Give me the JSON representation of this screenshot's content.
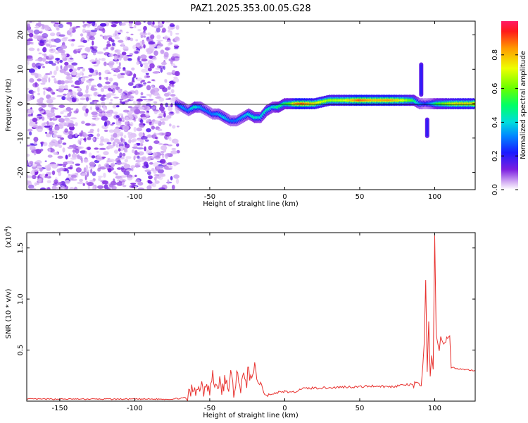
{
  "title": "PAZ1.2025.353.00.05.G28",
  "chart_data": [
    {
      "type": "heatmap",
      "title": "PAZ1.2025.353.00.05.G28",
      "xlabel": "Height of straight line (km)",
      "ylabel": "Frequency (Hz)",
      "xlim": [
        -172,
        127
      ],
      "ylim": [
        -25,
        24
      ],
      "xticks": [
        -150,
        -100,
        -50,
        0,
        50,
        100
      ],
      "yticks": [
        20,
        10,
        0,
        -10,
        -20
      ],
      "colorbar": {
        "label": "Normalized spectral amplitude",
        "range": [
          0,
          1
        ],
        "ticks": [
          0,
          0.2,
          0.4,
          0.6,
          0.8
        ]
      },
      "noise_region_x": [
        -172,
        -71
      ],
      "ridge": {
        "x": [
          -72,
          -68,
          -64,
          -60,
          -56,
          -52,
          -48,
          -44,
          -40,
          -36,
          -32,
          -28,
          -24,
          -20,
          -16,
          -12,
          -8,
          -4,
          0,
          4,
          8,
          12,
          20,
          30,
          40,
          50,
          60,
          70,
          80,
          86,
          90,
          94,
          98,
          102,
          108,
          115,
          127
        ],
        "freq": [
          0,
          -1,
          -2,
          -1,
          -1,
          -2,
          -3,
          -3,
          -4,
          -5,
          -5,
          -4,
          -3,
          -4,
          -4,
          -2,
          -1,
          -1,
          0,
          0,
          0,
          0,
          0,
          1,
          1,
          1,
          1,
          1,
          1,
          1,
          0,
          0,
          0,
          0,
          0,
          0,
          0
        ],
        "amplitude": [
          0.2,
          0.35,
          0.3,
          0.45,
          0.35,
          0.3,
          0.3,
          0.35,
          0.4,
          0.3,
          0.3,
          0.35,
          0.4,
          0.45,
          0.4,
          0.45,
          0.4,
          0.5,
          0.5,
          0.6,
          0.85,
          0.9,
          0.75,
          0.65,
          0.7,
          0.9,
          0.8,
          0.85,
          0.7,
          0.55,
          0.35,
          0.25,
          0.35,
          0.55,
          0.65,
          0.75,
          0.75
        ]
      },
      "spikes": [
        {
          "x": 91,
          "freq_range": [
            2,
            12
          ],
          "amplitude": 0.15
        },
        {
          "x": 95,
          "freq_range": [
            -10,
            -4
          ],
          "amplitude": 0.15
        }
      ]
    },
    {
      "type": "line",
      "title": "",
      "xlabel": "Height of straight line (km)",
      "ylabel": "SNR (10 * v/v)",
      "y_multiplier": "(x10",
      "y_multiplier_exp": "4",
      "y_multiplier_close": ")",
      "xlim": [
        -172,
        127
      ],
      "ylim": [
        0,
        1.65
      ],
      "xticks": [
        -150,
        -100,
        -50,
        0,
        50,
        100
      ],
      "yticks": [
        0.5,
        1.0,
        1.5
      ],
      "series": [
        {
          "name": "SNR",
          "color": "#e8312e",
          "x": [
            -172,
            -150,
            -120,
            -90,
            -75,
            -68,
            -64,
            -62,
            -60,
            -58,
            -56,
            -54,
            -52,
            -50,
            -48,
            -46,
            -44,
            -42,
            -40,
            -38,
            -36,
            -34,
            -32,
            -30,
            -28,
            -26,
            -24,
            -22,
            -20,
            -18,
            -16,
            -14,
            -12,
            -10,
            -8,
            -6,
            -4,
            -2,
            0,
            5,
            10,
            20,
            30,
            40,
            50,
            60,
            70,
            80,
            86,
            88,
            90,
            91,
            92,
            93,
            94,
            95,
            96,
            97,
            98,
            99,
            100,
            101,
            102,
            103,
            104,
            105,
            106,
            108,
            110,
            111,
            112,
            115,
            120,
            127
          ],
          "y": [
            0.02,
            0.02,
            0.02,
            0.02,
            0.02,
            0.03,
            0.04,
            0.1,
            0.16,
            0.09,
            0.19,
            0.12,
            0.22,
            0.08,
            0.24,
            0.13,
            0.2,
            0.1,
            0.18,
            0.12,
            0.25,
            0.08,
            0.28,
            0.1,
            0.3,
            0.12,
            0.35,
            0.14,
            0.4,
            0.15,
            0.22,
            0.08,
            0.05,
            0.07,
            0.06,
            0.08,
            0.09,
            0.08,
            0.1,
            0.08,
            0.12,
            0.13,
            0.13,
            0.14,
            0.14,
            0.15,
            0.14,
            0.16,
            0.16,
            0.14,
            0.2,
            0.12,
            0.3,
            0.6,
            1.18,
            0.3,
            0.82,
            0.2,
            0.45,
            0.3,
            1.65,
            0.6,
            0.62,
            0.45,
            0.62,
            0.61,
            0.6,
            0.61,
            0.6,
            0.33,
            0.33,
            0.32,
            0.31,
            0.3
          ]
        }
      ]
    }
  ]
}
